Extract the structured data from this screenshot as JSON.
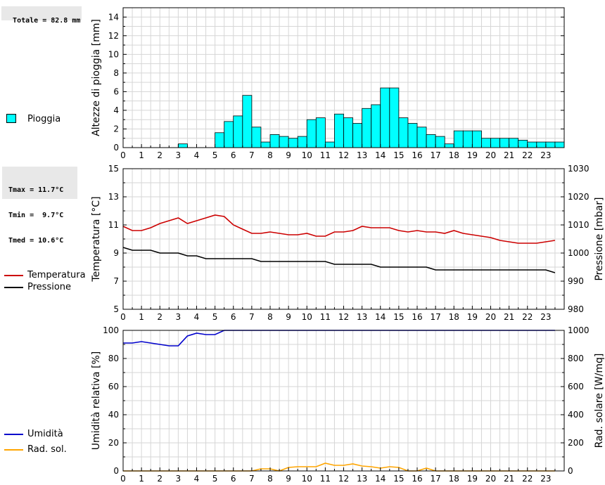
{
  "summary": {
    "total": "Totale = 82.8 mm",
    "tmax": "Tmax = 11.7°C",
    "tmin": "Tmin =  9.7°C",
    "tmed": "Tmed = 10.6°C"
  },
  "legend": {
    "rain": "Pioggia",
    "temperature": "Temperatura",
    "pressure": "Pressione",
    "humidity": "Umidità",
    "radiation": "Rad. sol."
  },
  "colors": {
    "rain": "#00ffff",
    "temperature": "#cc0000",
    "pressure": "#000000",
    "humidity": "#0000cc",
    "radiation": "#ffa500",
    "grid": "#d6d6d6"
  },
  "chart_data": [
    {
      "type": "bar",
      "ylabel": "Altezze di pioggia [mm]",
      "xlim": [
        0,
        24
      ],
      "ylim": [
        0,
        15
      ],
      "bar_width": 0.5,
      "x_ticks": [
        "0",
        "1",
        "2",
        "3",
        "4",
        "5",
        "6",
        "7",
        "8",
        "9",
        "10",
        "11",
        "12",
        "13",
        "14",
        "15",
        "16",
        "17",
        "18",
        "19",
        "20",
        "21",
        "22",
        "23"
      ],
      "y_ticks": [
        0,
        2,
        4,
        6,
        8,
        10,
        12,
        14
      ],
      "grid": true,
      "series": [
        {
          "name": "Pioggia",
          "x": [
            0,
            0.5,
            1,
            1.5,
            2,
            2.5,
            3,
            3.5,
            4,
            4.5,
            5,
            5.5,
            6,
            6.5,
            7,
            7.5,
            8,
            8.5,
            9,
            9.5,
            10,
            10.5,
            11,
            11.5,
            12,
            12.5,
            13,
            13.5,
            14,
            14.5,
            15,
            15.5,
            16,
            16.5,
            17,
            17.5,
            18,
            18.5,
            19,
            19.5,
            20,
            20.5,
            21,
            21.5,
            22,
            22.5,
            23,
            23.5
          ],
          "values": [
            0,
            0,
            0,
            0,
            0,
            0,
            0.4,
            0,
            0,
            0,
            1.6,
            2.8,
            3.4,
            5.6,
            2.2,
            0.6,
            1.4,
            1.2,
            1.0,
            1.2,
            3.0,
            3.2,
            0.6,
            3.6,
            3.2,
            2.6,
            4.2,
            4.6,
            6.4,
            6.4,
            3.2,
            2.6,
            2.2,
            1.4,
            1.2,
            0.4,
            1.8,
            1.8,
            1.8,
            1.0,
            1.0,
            1.0,
            1.0,
            0.8,
            0.6,
            0.6,
            0.6,
            0.6
          ]
        }
      ]
    },
    {
      "type": "line",
      "ylabel": "Temperatura [°C]",
      "y2label": "Pressione [mbar]",
      "xlim": [
        0,
        24
      ],
      "ylim": [
        5,
        15
      ],
      "y2lim": [
        980,
        1030
      ],
      "x_ticks": [
        "0",
        "1",
        "2",
        "3",
        "4",
        "5",
        "6",
        "7",
        "8",
        "9",
        "10",
        "11",
        "12",
        "13",
        "14",
        "15",
        "16",
        "17",
        "18",
        "19",
        "20",
        "21",
        "22",
        "23"
      ],
      "y_ticks": [
        5,
        7,
        9,
        11,
        13,
        15
      ],
      "y2_ticks": [
        980,
        990,
        1000,
        1010,
        1020,
        1030
      ],
      "grid": true,
      "series": [
        {
          "name": "Temperatura",
          "axis": "left",
          "x": [
            0,
            0.5,
            1,
            1.5,
            2,
            2.5,
            3,
            3.5,
            4,
            4.5,
            5,
            5.5,
            6,
            6.5,
            7,
            7.5,
            8,
            8.5,
            9,
            9.5,
            10,
            10.5,
            11,
            11.5,
            12,
            12.5,
            13,
            13.5,
            14,
            14.5,
            15,
            15.5,
            16,
            16.5,
            17,
            17.5,
            18,
            18.5,
            19,
            19.5,
            20,
            20.5,
            21,
            21.5,
            22,
            22.5,
            23,
            23.5
          ],
          "values": [
            10.9,
            10.6,
            10.6,
            10.8,
            11.1,
            11.3,
            11.5,
            11.1,
            11.3,
            11.5,
            11.7,
            11.6,
            11.0,
            10.7,
            10.4,
            10.4,
            10.5,
            10.4,
            10.3,
            10.3,
            10.4,
            10.2,
            10.2,
            10.5,
            10.5,
            10.6,
            10.9,
            10.8,
            10.8,
            10.8,
            10.6,
            10.5,
            10.6,
            10.5,
            10.5,
            10.4,
            10.6,
            10.4,
            10.3,
            10.2,
            10.1,
            9.9,
            9.8,
            9.7,
            9.7,
            9.7,
            9.8,
            9.9
          ]
        },
        {
          "name": "Pressione",
          "axis": "right",
          "x": [
            0,
            0.5,
            1,
            1.5,
            2,
            2.5,
            3,
            3.5,
            4,
            4.5,
            5,
            5.5,
            6,
            6.5,
            7,
            7.5,
            8,
            8.5,
            9,
            9.5,
            10,
            10.5,
            11,
            11.5,
            12,
            12.5,
            13,
            13.5,
            14,
            14.5,
            15,
            15.5,
            16,
            16.5,
            17,
            17.5,
            18,
            18.5,
            19,
            19.5,
            20,
            20.5,
            21,
            21.5,
            22,
            22.5,
            23,
            23.5
          ],
          "values": [
            1002,
            1001,
            1001,
            1001,
            1000,
            1000,
            1000,
            999,
            999,
            998,
            998,
            998,
            998,
            998,
            998,
            997,
            997,
            997,
            997,
            997,
            997,
            997,
            997,
            996,
            996,
            996,
            996,
            996,
            995,
            995,
            995,
            995,
            995,
            995,
            994,
            994,
            994,
            994,
            994,
            994,
            994,
            994,
            994,
            994,
            994,
            994,
            994,
            993
          ]
        }
      ]
    },
    {
      "type": "line",
      "ylabel": "Umidità relativa [%]",
      "y2label": "Rad. solare [W/mq]",
      "xlim": [
        0,
        24
      ],
      "ylim": [
        0,
        100
      ],
      "y2lim": [
        0,
        1000
      ],
      "x_ticks": [
        "0",
        "1",
        "2",
        "3",
        "4",
        "5",
        "6",
        "7",
        "8",
        "9",
        "10",
        "11",
        "12",
        "13",
        "14",
        "15",
        "16",
        "17",
        "18",
        "19",
        "20",
        "21",
        "22",
        "23"
      ],
      "y_ticks": [
        0,
        20,
        40,
        60,
        80,
        100
      ],
      "y2_ticks": [
        0,
        200,
        400,
        600,
        800,
        1000
      ],
      "grid": true,
      "series": [
        {
          "name": "Umidità",
          "axis": "left",
          "x": [
            0,
            0.5,
            1,
            1.5,
            2,
            2.5,
            3,
            3.5,
            4,
            4.5,
            5,
            5.5,
            6,
            6.5,
            7,
            7.5,
            8,
            8.5,
            9,
            9.5,
            10,
            10.5,
            11,
            11.5,
            12,
            12.5,
            13,
            13.5,
            14,
            14.5,
            15,
            15.5,
            16,
            16.5,
            17,
            17.5,
            18,
            18.5,
            19,
            19.5,
            20,
            20.5,
            21,
            21.5,
            22,
            22.5,
            23,
            23.5
          ],
          "values": [
            91,
            91,
            92,
            91,
            90,
            89,
            89,
            96,
            98,
            97,
            97,
            100,
            100,
            100,
            100,
            100,
            100,
            100,
            100,
            100,
            100,
            100,
            100,
            100,
            100,
            100,
            100,
            100,
            100,
            100,
            100,
            100,
            100,
            100,
            100,
            100,
            100,
            100,
            100,
            100,
            100,
            100,
            100,
            100,
            100,
            100,
            100,
            100
          ]
        },
        {
          "name": "Rad. sol.",
          "axis": "right",
          "x": [
            0,
            0.5,
            1,
            1.5,
            2,
            2.5,
            3,
            3.5,
            4,
            4.5,
            5,
            5.5,
            6,
            6.5,
            7,
            7.5,
            8,
            8.5,
            9,
            9.5,
            10,
            10.5,
            11,
            11.5,
            12,
            12.5,
            13,
            13.5,
            14,
            14.5,
            15,
            15.5,
            16,
            16.5,
            17,
            17.5,
            18,
            18.5,
            19,
            19.5,
            20,
            20.5,
            21,
            21.5,
            22,
            22.5,
            23,
            23.5
          ],
          "values": [
            0,
            0,
            0,
            0,
            0,
            0,
            0,
            0,
            0,
            0,
            0,
            0,
            0,
            0,
            0,
            15,
            15,
            0,
            25,
            30,
            30,
            30,
            55,
            40,
            40,
            50,
            35,
            30,
            20,
            30,
            25,
            0,
            0,
            20,
            0,
            0,
            0,
            0,
            0,
            0,
            0,
            0,
            0,
            0,
            0,
            0,
            0,
            0
          ]
        }
      ]
    }
  ]
}
